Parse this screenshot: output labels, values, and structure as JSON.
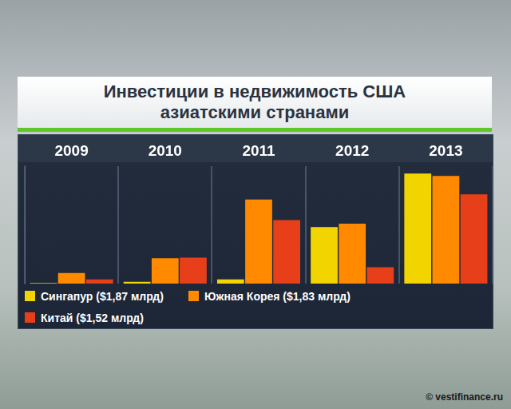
{
  "chart_data": {
    "type": "bar",
    "title": "Инвестиции в недвижимость США азиатскими странами",
    "categories": [
      "2009",
      "2010",
      "2011",
      "2012",
      "2013"
    ],
    "series": [
      {
        "name": "Сингапур ($1,87 млрд)",
        "color": "#f2d400",
        "values": [
          0.01,
          0.03,
          0.07,
          0.96,
          1.87
        ]
      },
      {
        "name": "Южная Корея ($1,83 млрд)",
        "color": "#ff8a00",
        "values": [
          0.18,
          0.43,
          1.43,
          1.02,
          1.83
        ]
      },
      {
        "name": "Китай ($1,52 млрд)",
        "color": "#e63f1a",
        "values": [
          0.07,
          0.44,
          1.08,
          0.28,
          1.52
        ]
      }
    ],
    "ylim": [
      0,
      2
    ],
    "tick_labels": "x",
    "grid": true,
    "legend": "bottom",
    "credit": "© vestifinance.ru"
  }
}
